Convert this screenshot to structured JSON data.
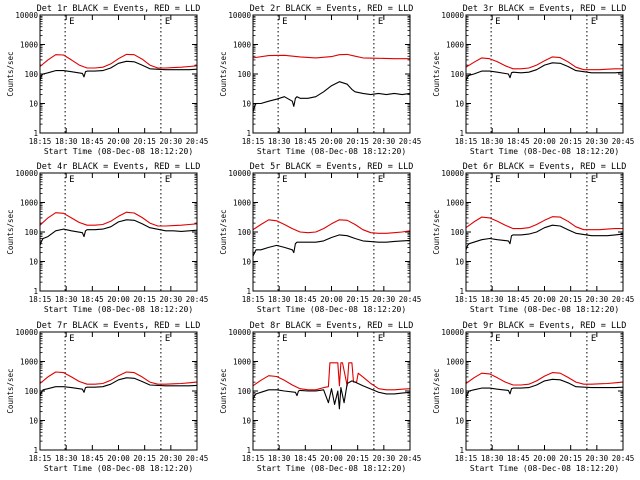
{
  "colors": {
    "events": "#000000",
    "lld": "#e00000",
    "background": "#ffffff",
    "axes": "#000000"
  },
  "common": {
    "ylabel": "Counts/sec",
    "xlabel": "Start Time (08-Dec-08 18:12:20)",
    "x_ticks": [
      "18:15",
      "18:30",
      "18:45",
      "20:00",
      "20:15",
      "20:30",
      "20:45"
    ],
    "y_ticks": [
      "1",
      "10",
      "100",
      "1000",
      "10000"
    ],
    "markers": [
      "E",
      "E"
    ]
  },
  "chart_data": [
    {
      "type": "line",
      "title": "Det 1r BLACK = Events, RED = LLD",
      "ylim": [
        1,
        10000
      ],
      "series": [
        {
          "name": "LLD",
          "color": "#e00000",
          "x": [
            0,
            5,
            10,
            15,
            20,
            25,
            30,
            35,
            40,
            45,
            50,
            55,
            60,
            65,
            70,
            75,
            80,
            85,
            90,
            95,
            100
          ],
          "values": [
            180,
            300,
            450,
            440,
            300,
            200,
            160,
            160,
            170,
            220,
            330,
            460,
            450,
            320,
            200,
            160,
            160,
            165,
            170,
            180,
            190
          ]
        },
        {
          "name": "Events",
          "color": "#000000",
          "x": [
            0,
            1,
            2,
            5,
            10,
            15,
            20,
            27,
            28,
            29,
            30,
            35,
            40,
            45,
            50,
            55,
            60,
            65,
            70,
            80,
            85,
            90,
            95,
            100
          ],
          "values": [
            60,
            90,
            100,
            110,
            130,
            130,
            120,
            105,
            80,
            120,
            125,
            125,
            130,
            160,
            230,
            270,
            260,
            200,
            150,
            140,
            140,
            140,
            140,
            145
          ]
        }
      ]
    },
    {
      "type": "line",
      "title": "Det 2r BLACK = Events, RED = LLD",
      "ylim": [
        1,
        10000
      ],
      "series": [
        {
          "name": "LLD",
          "color": "#e00000",
          "x": [
            0,
            10,
            20,
            30,
            40,
            50,
            55,
            60,
            65,
            70,
            80,
            90,
            100
          ],
          "values": [
            350,
            420,
            430,
            380,
            350,
            390,
            450,
            460,
            400,
            350,
            340,
            330,
            330
          ]
        },
        {
          "name": "Events",
          "color": "#000000",
          "x": [
            0,
            1,
            2,
            5,
            10,
            15,
            20,
            25,
            26,
            27,
            28,
            30,
            35,
            40,
            45,
            50,
            55,
            60,
            63,
            65,
            70,
            75,
            80,
            85,
            90,
            95,
            100
          ],
          "values": [
            5,
            8,
            10,
            10,
            12,
            14,
            17,
            12,
            8,
            15,
            17,
            15,
            15,
            17,
            25,
            40,
            55,
            45,
            30,
            25,
            22,
            20,
            22,
            20,
            22,
            20,
            22
          ]
        }
      ]
    },
    {
      "type": "line",
      "title": "Det 3r BLACK = Events, RED = LLD",
      "ylim": [
        1,
        10000
      ],
      "series": [
        {
          "name": "LLD",
          "color": "#e00000",
          "x": [
            0,
            5,
            10,
            15,
            20,
            25,
            30,
            35,
            40,
            45,
            50,
            55,
            60,
            65,
            70,
            75,
            80,
            85,
            90,
            95,
            100
          ],
          "values": [
            170,
            250,
            350,
            330,
            260,
            190,
            150,
            150,
            160,
            200,
            280,
            380,
            360,
            260,
            170,
            140,
            140,
            140,
            145,
            150,
            150
          ]
        },
        {
          "name": "Events",
          "color": "#000000",
          "x": [
            0,
            1,
            2,
            5,
            10,
            15,
            20,
            27,
            28,
            29,
            30,
            35,
            40,
            45,
            50,
            55,
            60,
            65,
            70,
            80,
            85,
            90,
            95,
            100
          ],
          "values": [
            60,
            80,
            90,
            100,
            125,
            125,
            115,
            100,
            75,
            110,
            115,
            110,
            115,
            140,
            200,
            240,
            230,
            180,
            130,
            110,
            110,
            110,
            110,
            115
          ]
        }
      ]
    },
    {
      "type": "line",
      "title": "Det 4r BLACK = Events, RED = LLD",
      "ylim": [
        1,
        10000
      ],
      "series": [
        {
          "name": "LLD",
          "color": "#e00000",
          "x": [
            0,
            5,
            10,
            15,
            20,
            25,
            30,
            35,
            40,
            45,
            50,
            55,
            60,
            65,
            70,
            75,
            80,
            85,
            90,
            95,
            100
          ],
          "values": [
            170,
            300,
            450,
            430,
            300,
            210,
            170,
            170,
            180,
            230,
            340,
            470,
            440,
            310,
            200,
            160,
            160,
            165,
            170,
            180,
            190
          ]
        },
        {
          "name": "Events",
          "color": "#000000",
          "x": [
            0,
            1,
            2,
            5,
            10,
            15,
            20,
            27,
            28,
            29,
            30,
            35,
            40,
            45,
            50,
            55,
            60,
            65,
            70,
            80,
            85,
            90,
            95,
            100
          ],
          "values": [
            35,
            50,
            60,
            70,
            110,
            125,
            110,
            95,
            70,
            110,
            120,
            120,
            125,
            150,
            220,
            260,
            250,
            190,
            140,
            110,
            110,
            105,
            110,
            115
          ]
        }
      ]
    },
    {
      "type": "line",
      "title": "Det 5r BLACK = Events, RED = LLD",
      "ylim": [
        1,
        10000
      ],
      "series": [
        {
          "name": "LLD",
          "color": "#e00000",
          "x": [
            0,
            5,
            10,
            15,
            20,
            25,
            30,
            35,
            40,
            45,
            50,
            55,
            60,
            65,
            70,
            75,
            80,
            85,
            90,
            95,
            100
          ],
          "values": [
            120,
            180,
            260,
            240,
            180,
            130,
            100,
            95,
            100,
            130,
            190,
            260,
            250,
            180,
            120,
            95,
            90,
            90,
            95,
            100,
            110
          ]
        },
        {
          "name": "Events",
          "color": "#000000",
          "x": [
            0,
            1,
            2,
            5,
            10,
            15,
            20,
            25,
            26,
            27,
            28,
            30,
            35,
            40,
            45,
            50,
            55,
            60,
            65,
            70,
            80,
            85,
            90,
            95,
            100
          ],
          "values": [
            15,
            20,
            25,
            25,
            30,
            35,
            30,
            25,
            20,
            40,
            45,
            45,
            45,
            45,
            50,
            65,
            80,
            75,
            60,
            50,
            45,
            45,
            48,
            50,
            52
          ]
        }
      ]
    },
    {
      "type": "line",
      "title": "Det 6r BLACK = Events, RED = LLD",
      "ylim": [
        1,
        10000
      ],
      "series": [
        {
          "name": "LLD",
          "color": "#e00000",
          "x": [
            0,
            5,
            10,
            15,
            20,
            25,
            30,
            35,
            40,
            45,
            50,
            55,
            60,
            65,
            70,
            75,
            80,
            85,
            90,
            95,
            100
          ],
          "values": [
            140,
            220,
            320,
            300,
            230,
            170,
            130,
            130,
            140,
            180,
            250,
            330,
            320,
            230,
            150,
            120,
            120,
            120,
            125,
            130,
            130
          ]
        },
        {
          "name": "Events",
          "color": "#000000",
          "x": [
            0,
            1,
            2,
            5,
            10,
            15,
            20,
            27,
            28,
            29,
            30,
            35,
            40,
            45,
            50,
            55,
            60,
            65,
            70,
            80,
            85,
            90,
            95,
            100
          ],
          "values": [
            25,
            35,
            40,
            45,
            55,
            60,
            55,
            50,
            40,
            75,
            80,
            80,
            85,
            100,
            140,
            170,
            160,
            120,
            90,
            75,
            75,
            75,
            80,
            85
          ]
        }
      ]
    },
    {
      "type": "line",
      "title": "Det 7r BLACK = Events, RED = LLD",
      "ylim": [
        1,
        10000
      ],
      "series": [
        {
          "name": "LLD",
          "color": "#e00000",
          "x": [
            0,
            5,
            10,
            15,
            20,
            25,
            30,
            35,
            40,
            45,
            50,
            55,
            60,
            65,
            70,
            75,
            80,
            85,
            90,
            95,
            100
          ],
          "values": [
            180,
            300,
            440,
            420,
            300,
            210,
            170,
            170,
            180,
            230,
            330,
            440,
            420,
            300,
            200,
            170,
            170,
            175,
            180,
            190,
            200
          ]
        },
        {
          "name": "Events",
          "color": "#000000",
          "x": [
            0,
            1,
            2,
            5,
            10,
            15,
            20,
            27,
            28,
            29,
            30,
            35,
            40,
            45,
            50,
            55,
            60,
            65,
            70,
            80,
            85,
            90,
            95,
            100
          ],
          "values": [
            70,
            90,
            110,
            120,
            140,
            140,
            130,
            115,
            90,
            130,
            135,
            135,
            140,
            170,
            240,
            280,
            270,
            210,
            160,
            150,
            150,
            150,
            150,
            155
          ]
        }
      ]
    },
    {
      "type": "line",
      "title": "Det 8r BLACK = Events, RED = LLD",
      "ylim": [
        1,
        10000
      ],
      "series": [
        {
          "name": "LLD",
          "color": "#e00000",
          "x": [
            0,
            5,
            10,
            15,
            20,
            25,
            30,
            35,
            40,
            45,
            48,
            49,
            54,
            55,
            56,
            57,
            60,
            61,
            63,
            64,
            66,
            67,
            70,
            75,
            80,
            85,
            90,
            95,
            100
          ],
          "values": [
            150,
            230,
            330,
            310,
            230,
            160,
            120,
            110,
            110,
            130,
            140,
            900,
            900,
            150,
            900,
            900,
            150,
            900,
            900,
            200,
            200,
            400,
            300,
            180,
            120,
            110,
            110,
            115,
            120
          ]
        },
        {
          "name": "Events",
          "color": "#000000",
          "x": [
            0,
            1,
            2,
            5,
            10,
            15,
            20,
            27,
            28,
            29,
            30,
            35,
            40,
            45,
            48,
            50,
            52,
            54,
            55,
            56,
            58,
            60,
            63,
            65,
            70,
            80,
            85,
            90,
            95,
            100
          ],
          "values": [
            50,
            70,
            80,
            90,
            110,
            110,
            100,
            90,
            70,
            100,
            105,
            100,
            100,
            110,
            40,
            120,
            35,
            100,
            25,
            130,
            40,
            180,
            220,
            200,
            150,
            90,
            80,
            80,
            85,
            90
          ]
        }
      ]
    },
    {
      "type": "line",
      "title": "Det 9r BLACK = Events, RED = LLD",
      "ylim": [
        1,
        10000
      ],
      "series": [
        {
          "name": "LLD",
          "color": "#e00000",
          "x": [
            0,
            5,
            10,
            15,
            20,
            25,
            30,
            35,
            40,
            45,
            50,
            55,
            60,
            65,
            70,
            75,
            80,
            85,
            90,
            95,
            100
          ],
          "values": [
            180,
            280,
            400,
            380,
            280,
            200,
            160,
            160,
            170,
            220,
            320,
            420,
            400,
            290,
            200,
            170,
            170,
            175,
            180,
            190,
            200
          ]
        },
        {
          "name": "Events",
          "color": "#000000",
          "x": [
            0,
            1,
            2,
            5,
            10,
            15,
            20,
            27,
            28,
            29,
            30,
            35,
            40,
            45,
            50,
            55,
            60,
            65,
            70,
            80,
            85,
            90,
            95,
            100
          ],
          "values": [
            60,
            80,
            100,
            110,
            125,
            125,
            115,
            105,
            80,
            120,
            125,
            125,
            130,
            160,
            220,
            250,
            240,
            190,
            140,
            130,
            130,
            130,
            130,
            135
          ]
        }
      ]
    }
  ]
}
